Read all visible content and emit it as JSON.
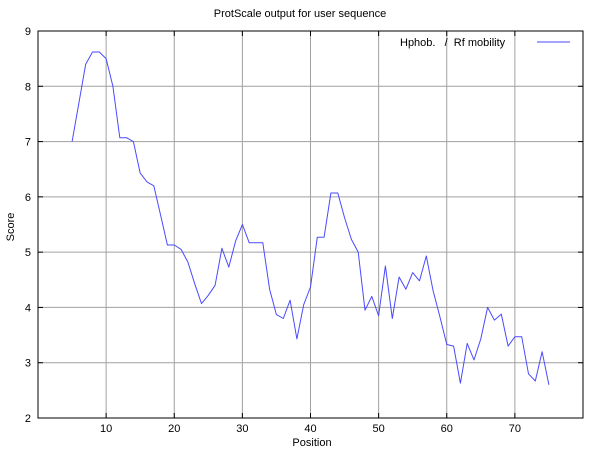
{
  "chart_data": {
    "type": "line",
    "title": "ProtScale output for user sequence",
    "xlabel": "Position",
    "ylabel": "Score",
    "xlim": [
      0,
      80
    ],
    "ylim": [
      2,
      9
    ],
    "x_ticks": [
      10,
      20,
      30,
      40,
      50,
      60,
      70
    ],
    "y_ticks": [
      2,
      3,
      4,
      5,
      6,
      7,
      8,
      9
    ],
    "grid": true,
    "legend_position": "top-right",
    "series": [
      {
        "name": "Hphob.   /  Rf mobility",
        "color": "#4a4aff",
        "x": [
          5,
          6,
          7,
          8,
          9,
          10,
          11,
          12,
          13,
          14,
          15,
          16,
          17,
          18,
          19,
          20,
          21,
          22,
          23,
          24,
          25,
          26,
          27,
          28,
          29,
          30,
          31,
          32,
          33,
          34,
          35,
          36,
          37,
          38,
          39,
          40,
          41,
          42,
          43,
          44,
          45,
          46,
          47,
          48,
          49,
          50,
          51,
          52,
          53,
          54,
          55,
          56,
          57,
          58,
          59,
          60,
          61,
          62,
          63,
          64,
          65,
          66,
          67,
          68,
          69,
          70,
          71,
          72,
          73,
          74,
          75
        ],
        "values": [
          7.0,
          7.7,
          8.4,
          8.62,
          8.62,
          8.5,
          8.0,
          7.07,
          7.07,
          7.0,
          6.43,
          6.27,
          6.2,
          5.67,
          5.13,
          5.13,
          5.05,
          4.82,
          4.43,
          4.07,
          4.22,
          4.4,
          5.07,
          4.73,
          5.2,
          5.5,
          5.17,
          5.17,
          5.17,
          4.33,
          3.87,
          3.8,
          4.13,
          3.43,
          4.05,
          4.37,
          5.27,
          5.27,
          6.07,
          6.07,
          5.62,
          5.23,
          5.0,
          3.95,
          4.2,
          3.85,
          4.75,
          3.8,
          4.55,
          4.33,
          4.63,
          4.48,
          4.93,
          4.3,
          3.83,
          3.33,
          3.3,
          2.63,
          3.35,
          3.05,
          3.43,
          4.0,
          3.77,
          3.88,
          3.3,
          3.47,
          3.47,
          2.8,
          2.67,
          3.2,
          2.6
        ]
      }
    ]
  }
}
